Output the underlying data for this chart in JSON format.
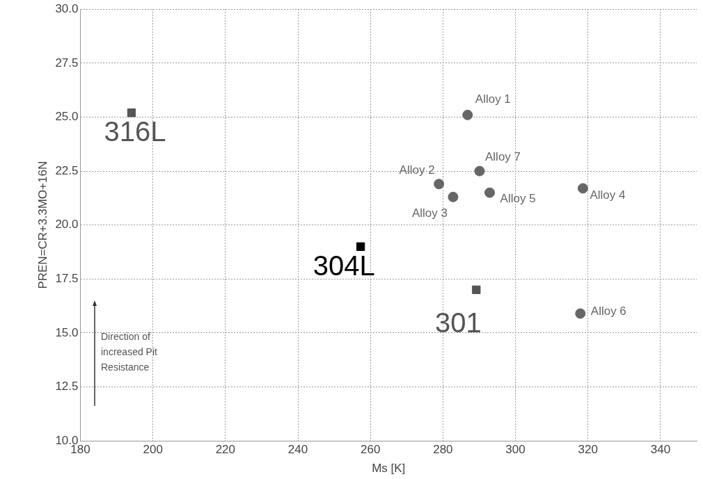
{
  "chart_data": {
    "type": "scatter",
    "xlabel": "Ms [K]",
    "ylabel": "PREN=CR+3.3MO+16N",
    "xlim": [
      180,
      350
    ],
    "xticks": [
      180,
      200,
      220,
      240,
      260,
      280,
      300,
      320,
      340
    ],
    "ylim": [
      10,
      30
    ],
    "yticks": [
      {
        "value": 10,
        "label": "10.0"
      },
      {
        "value": 12.5,
        "label": "12.5"
      },
      {
        "value": 15,
        "label": "15.0"
      },
      {
        "value": 17.5,
        "label": "17.5"
      },
      {
        "value": 20,
        "label": "20.0"
      },
      {
        "value": 22.5,
        "label": "22.5"
      },
      {
        "value": 25,
        "label": "25.0"
      },
      {
        "value": 27.5,
        "label": "27.5"
      },
      {
        "value": 30,
        "label": "30.0"
      }
    ],
    "grid": true,
    "legend": false,
    "annotations": [
      "Direction of increased Pit Resistance"
    ],
    "series": [
      {
        "name": "316L",
        "color": "#555555",
        "marker": "square",
        "x": [
          194.1
        ],
        "values": [
          25.2
        ]
      },
      {
        "name": "304L",
        "color": "#000000",
        "marker": "square",
        "x": [
          257.3
        ],
        "values": [
          19.0
        ]
      },
      {
        "name": "301",
        "color": "#555555",
        "marker": "square",
        "x": [
          289.2
        ],
        "values": [
          17.0
        ]
      },
      {
        "name": "Alloy 1",
        "color": "#666666",
        "marker": "circle",
        "x": [
          286.8
        ],
        "values": [
          25.1
        ]
      },
      {
        "name": "Alloy 7",
        "color": "#666666",
        "marker": "circle",
        "x": [
          290.1
        ],
        "values": [
          22.5
        ]
      },
      {
        "name": "Alloy 2",
        "color": "#666666",
        "marker": "circle",
        "x": [
          278.9
        ],
        "values": [
          21.9
        ]
      },
      {
        "name": "Alloy 3",
        "color": "#666666",
        "marker": "circle",
        "x": [
          282.8
        ],
        "values": [
          21.3
        ]
      },
      {
        "name": "Alloy 5",
        "color": "#666666",
        "marker": "circle",
        "x": [
          292.9
        ],
        "values": [
          21.5
        ]
      },
      {
        "name": "Alloy 4",
        "color": "#666666",
        "marker": "circle",
        "x": [
          318.6
        ],
        "values": [
          21.7
        ]
      },
      {
        "name": "Alloy 6",
        "color": "#666666",
        "marker": "circle",
        "x": [
          317.9
        ],
        "values": [
          15.9
        ]
      }
    ]
  }
}
